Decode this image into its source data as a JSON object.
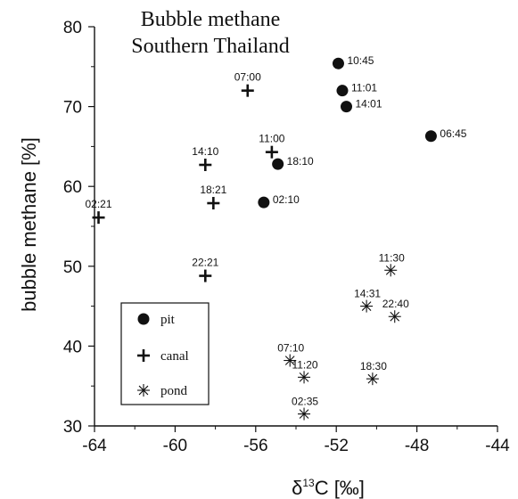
{
  "chart_data": {
    "type": "scatter",
    "title": "Bubble methane",
    "subtitle": "Southern Thailand",
    "xlabel_prefix": "δ",
    "xlabel_sup": "13",
    "xlabel_suffix": "C [‰]",
    "ylabel": "bubble methane [%]",
    "xlim": [
      -64,
      -44
    ],
    "ylim": [
      30,
      80
    ],
    "xticks": [
      -64,
      -60,
      -56,
      -52,
      -48,
      -44
    ],
    "yticks": [
      30,
      40,
      50,
      60,
      70,
      80
    ],
    "legend_position": "lower-left",
    "series": [
      {
        "name": "pit",
        "marker": "circle",
        "points": [
          {
            "x": -51.9,
            "y": 75.4,
            "label": "10:45"
          },
          {
            "x": -51.7,
            "y": 72.0,
            "label": "11:01"
          },
          {
            "x": -51.5,
            "y": 70.0,
            "label": "14:01"
          },
          {
            "x": -47.3,
            "y": 66.3,
            "label": "06:45"
          },
          {
            "x": -54.9,
            "y": 62.8,
            "label": "18:10"
          },
          {
            "x": -55.6,
            "y": 58.0,
            "label": "02:10"
          }
        ]
      },
      {
        "name": "canal",
        "marker": "plus",
        "points": [
          {
            "x": -56.4,
            "y": 72.0,
            "label": "07:00"
          },
          {
            "x": -55.2,
            "y": 64.3,
            "label": "11:00"
          },
          {
            "x": -58.5,
            "y": 62.7,
            "label": "14:10"
          },
          {
            "x": -58.1,
            "y": 57.9,
            "label": "18:21"
          },
          {
            "x": -63.8,
            "y": 56.1,
            "label": "02:21"
          },
          {
            "x": -58.5,
            "y": 48.8,
            "label": "22:21"
          }
        ]
      },
      {
        "name": "pond",
        "marker": "asterisk",
        "points": [
          {
            "x": -49.3,
            "y": 49.5,
            "label": "11:30"
          },
          {
            "x": -50.5,
            "y": 45.0,
            "label": "14:31"
          },
          {
            "x": -49.1,
            "y": 43.7,
            "label": "22:40"
          },
          {
            "x": -54.3,
            "y": 38.2,
            "label": "07:10"
          },
          {
            "x": -53.6,
            "y": 36.1,
            "label": "11:20"
          },
          {
            "x": -50.2,
            "y": 35.9,
            "label": "18:30"
          },
          {
            "x": -53.6,
            "y": 31.5,
            "label": "02:35"
          }
        ]
      }
    ]
  }
}
